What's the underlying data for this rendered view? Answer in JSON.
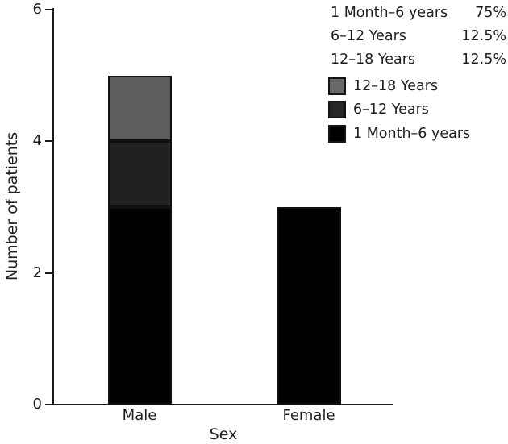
{
  "chart_data": {
    "type": "bar",
    "stacked": true,
    "title": "",
    "xlabel": "Sex",
    "ylabel": "Number of patients",
    "categories": [
      "Male",
      "Female"
    ],
    "series": [
      {
        "name": "1 Month–6 years",
        "color": "#000000",
        "values": [
          3,
          3
        ]
      },
      {
        "name": "6–12 Years",
        "color": "#212121",
        "values": [
          1,
          0
        ]
      },
      {
        "name": "12–18 Years",
        "color": "#5d5d5d",
        "values": [
          1,
          0
        ]
      }
    ],
    "ylim": [
      0,
      6
    ],
    "yticks": [
      0,
      2,
      4,
      6
    ],
    "grid": false,
    "legend_position": "top-right"
  },
  "stats": [
    {
      "label": "1 Month–6 years",
      "value": "75%"
    },
    {
      "label": "6–12 Years",
      "value": "12.5%"
    },
    {
      "label": "12–18 Years",
      "value": "12.5%"
    }
  ],
  "legend": {
    "items": [
      {
        "label": "12–18 Years",
        "color": "#696969"
      },
      {
        "label": "6–12 Years",
        "color": "#262626"
      },
      {
        "label": "1 Month–6 years",
        "color": "#000000"
      }
    ]
  },
  "colors": {
    "axis": "#1a1a1a",
    "text": "#1f1f1f",
    "background": "#ffffff"
  }
}
